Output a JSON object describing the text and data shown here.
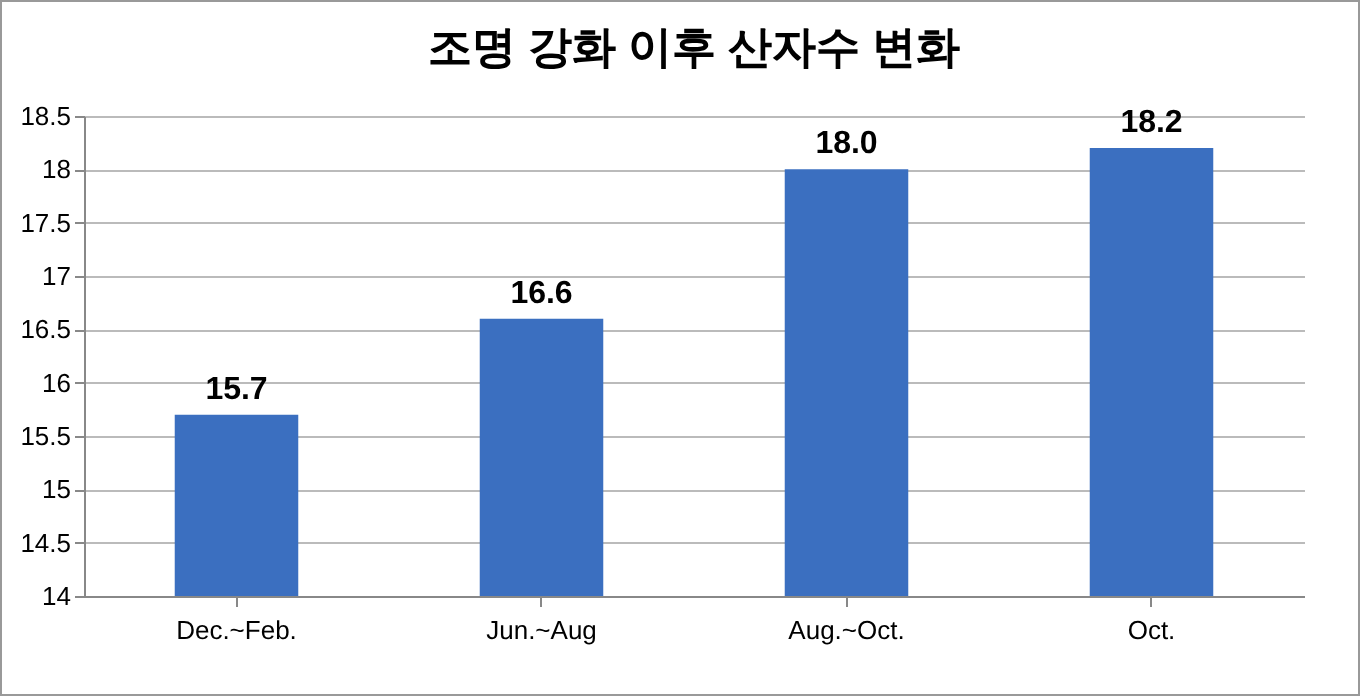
{
  "chart_data": {
    "type": "bar",
    "title": "조명 강화 이후 산자수 변화",
    "categories": [
      "Dec.~Feb.",
      "Jun.~Aug",
      "Aug.~Oct.",
      "Oct."
    ],
    "values": [
      15.7,
      16.6,
      18.0,
      18.2
    ],
    "value_labels": [
      "15.7",
      "16.6",
      "18.0",
      "18.2"
    ],
    "color": "#3b6fc0",
    "ylim": [
      14,
      18.5
    ],
    "yticks": [
      14,
      14.5,
      15,
      15.5,
      16,
      16.5,
      17,
      17.5,
      18,
      18.5
    ],
    "grid": "y"
  }
}
